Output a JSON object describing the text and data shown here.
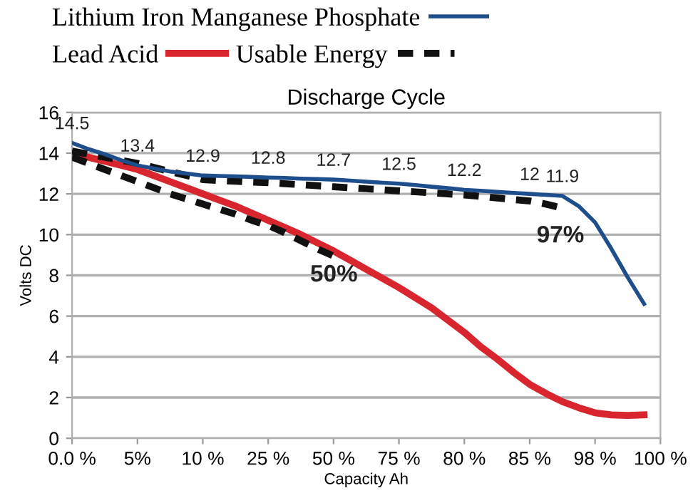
{
  "chart_data": {
    "type": "line",
    "title": "Discharge Cycle",
    "xlabel": "Capacity Ah",
    "ylabel": "Volts DC",
    "categories": [
      "0.0 %",
      null,
      null,
      null,
      "5%",
      null,
      null,
      null,
      "10 %",
      null,
      null,
      null,
      "25 %",
      null,
      null,
      null,
      "50 %",
      null,
      null,
      null,
      "75 %",
      null,
      null,
      null,
      "80 %",
      null,
      null,
      null,
      "85 %",
      null,
      null,
      null,
      "98 %",
      null,
      null,
      null,
      "100 %"
    ],
    "ylim": [
      0,
      16
    ],
    "yticks": [
      0,
      2,
      4,
      6,
      8,
      10,
      12,
      14,
      16
    ],
    "grid": "y",
    "legend": "top",
    "series": [
      {
        "name": "Lithium Iron Manganese Phosphate",
        "color": "#1f4e8c",
        "values": [
          14.5,
          14.2,
          13.95,
          13.65,
          13.4,
          13.25,
          13.1,
          13.0,
          12.9,
          12.88,
          12.86,
          12.83,
          12.8,
          12.78,
          12.75,
          12.73,
          12.7,
          12.65,
          12.6,
          12.55,
          12.5,
          12.43,
          12.35,
          12.28,
          12.2,
          12.15,
          12.1,
          12.05,
          12.0,
          11.95,
          11.9,
          11.4,
          10.6,
          9.3,
          7.9,
          6.6,
          null
        ],
        "value_labels": [
          "14.5",
          null,
          null,
          null,
          "13.4",
          null,
          null,
          null,
          "12.9",
          null,
          null,
          null,
          "12.8",
          null,
          null,
          null,
          "12.7",
          null,
          null,
          null,
          "12.5",
          null,
          null,
          null,
          "12.2",
          null,
          null,
          null,
          "12",
          null,
          "11.9",
          null,
          null,
          null,
          null,
          null,
          null
        ]
      },
      {
        "name": "Lead Acid",
        "color": "#d9262e",
        "values": [
          14.0,
          13.8,
          13.6,
          13.4,
          13.2,
          12.9,
          12.6,
          12.3,
          12.0,
          11.7,
          11.4,
          11.05,
          10.7,
          10.35,
          10.0,
          9.6,
          9.2,
          8.75,
          8.3,
          7.85,
          7.4,
          6.9,
          6.4,
          5.8,
          5.2,
          4.5,
          3.9,
          3.25,
          2.65,
          2.2,
          1.8,
          1.5,
          1.25,
          1.15,
          1.12,
          1.15,
          null
        ]
      },
      {
        "name": "Usable Energy",
        "color": "#111111",
        "line_style": "dashed",
        "values": [
          14.1,
          13.95,
          13.8,
          13.65,
          13.5,
          13.3,
          13.1,
          12.9,
          12.7,
          12.66,
          12.62,
          12.58,
          12.55,
          12.5,
          12.45,
          12.4,
          12.35,
          12.3,
          12.25,
          12.2,
          12.15,
          12.1,
          12.05,
          12.0,
          11.95,
          11.88,
          11.8,
          11.72,
          11.65,
          11.5,
          11.3,
          null,
          null,
          null,
          null,
          null,
          null
        ]
      },
      {
        "color": "#111111",
        "line_style": "dashed",
        "values": [
          13.8,
          13.5,
          13.2,
          12.9,
          12.6,
          12.3,
          12.0,
          11.75,
          11.5,
          11.25,
          11.0,
          10.7,
          10.45,
          10.1,
          9.7,
          9.3,
          8.95,
          null,
          null,
          null,
          null,
          null,
          null,
          null,
          null,
          null,
          null,
          null,
          null,
          null,
          null,
          null,
          null,
          null,
          null,
          null,
          null
        ]
      }
    ],
    "annotations": [
      "50%",
      "97%"
    ]
  }
}
